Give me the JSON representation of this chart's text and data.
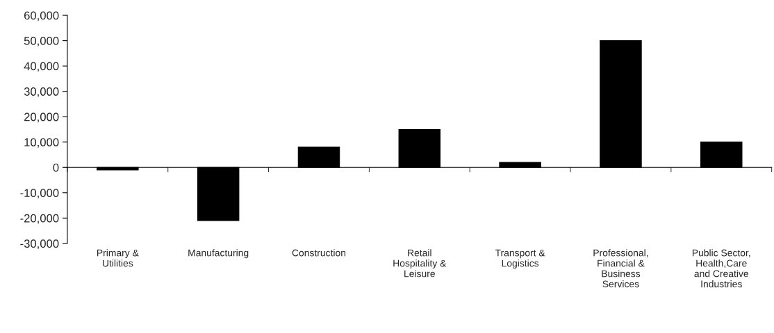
{
  "chart_data": {
    "type": "bar",
    "categories": [
      "Primary &\nUtilities",
      "Manufacturing",
      "Construction",
      "Retail\nHospitality &\nLeisure",
      "Transport &\nLogistics",
      "Professional,\nFinancial &\nBusiness\nServices",
      "Public Sector,\nHealth,Care\nand Creative\nIndustries"
    ],
    "values": [
      -1000,
      -21000,
      8000,
      15000,
      2000,
      50000,
      10000
    ],
    "color": "#000000",
    "ylim": [
      -30000,
      60000
    ],
    "yticks": [
      {
        "value": -30000,
        "label": "-30,000"
      },
      {
        "value": -20000,
        "label": "-20,000"
      },
      {
        "value": -10000,
        "label": "-10,000"
      },
      0,
      {
        "value": 10000,
        "label": "10,000"
      },
      {
        "value": 20000,
        "label": "20,000"
      },
      {
        "value": 30000,
        "label": "30,000"
      },
      {
        "value": 40000,
        "label": "40,000"
      },
      {
        "value": 50000,
        "label": "50,000"
      },
      {
        "value": 60000,
        "label": "60,000"
      }
    ],
    "legend": false
  }
}
